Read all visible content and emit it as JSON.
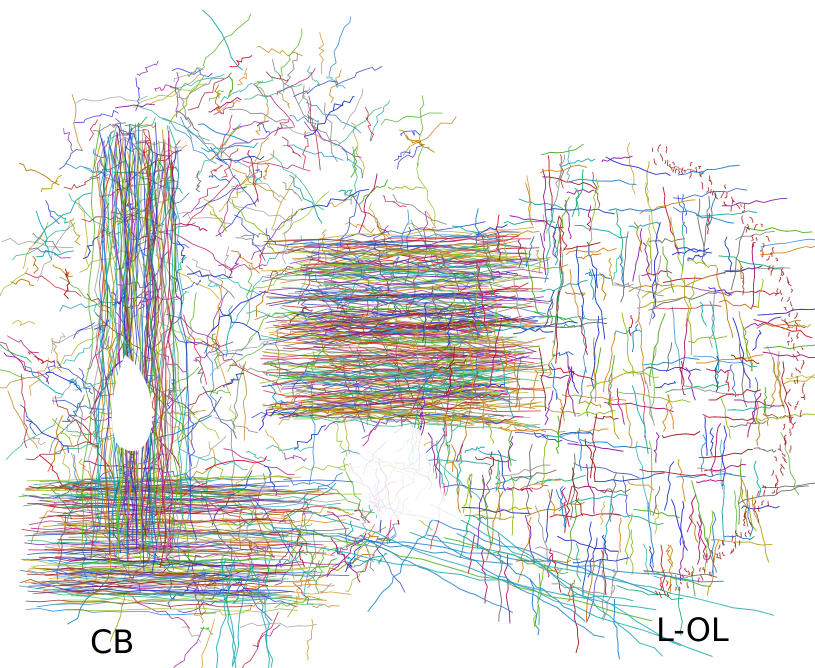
{
  "labels": {
    "cb": "CB",
    "lol": "L-OL"
  },
  "palette": [
    "#1f3fbf",
    "#2a2ad6",
    "#8b1fa8",
    "#b0127a",
    "#c8162e",
    "#9e1a1a",
    "#c07a10",
    "#d48a1e",
    "#b8a21a",
    "#8fbf1c",
    "#4cae1e",
    "#22b07a",
    "#1aa8b0",
    "#1e7fd0",
    "#9a9a9a",
    "#707070"
  ],
  "colors": {
    "background": "#ffffff",
    "label": "#000000",
    "edge_dots": "#a01818"
  }
}
